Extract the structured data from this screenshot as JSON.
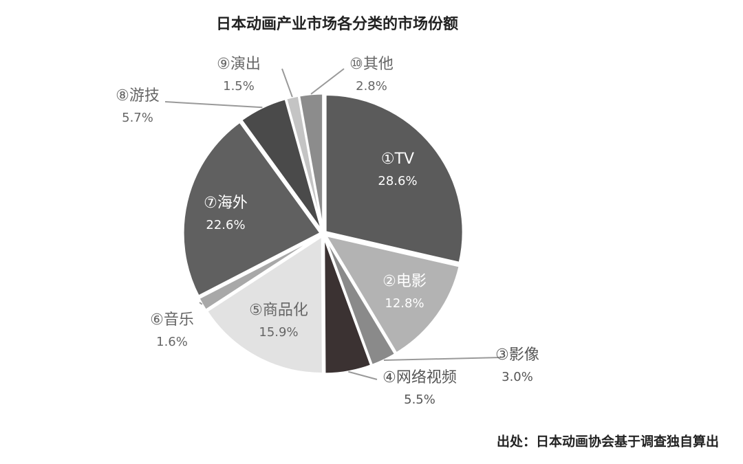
{
  "chart_data": {
    "type": "pie",
    "title": "日本动画产业市场各分类的市场份额",
    "categories": [
      "①TV",
      "②电影",
      "③影像",
      "④网络视频",
      "⑤商品化",
      "⑥音乐",
      "⑦海外",
      "⑧游技",
      "⑨演出",
      "⑩其他"
    ],
    "values": [
      28.6,
      12.8,
      3.0,
      5.5,
      15.9,
      1.6,
      22.6,
      5.7,
      1.5,
      2.8
    ],
    "value_labels": [
      "28.6%",
      "12.8%",
      "3.0%",
      "5.5%",
      "15.9%",
      "1.6%",
      "22.6%",
      "5.7%",
      "1.5%",
      "2.8%"
    ],
    "colors": [
      "#5b5b5b",
      "#b3b3b3",
      "#8a8a8a",
      "#3b3232",
      "#e2e2e2",
      "#a8a8a8",
      "#606060",
      "#4a4a4a",
      "#c4c4c4",
      "#8c8c8c"
    ],
    "source": "出处：日本动画协会基于调查独自算出"
  }
}
